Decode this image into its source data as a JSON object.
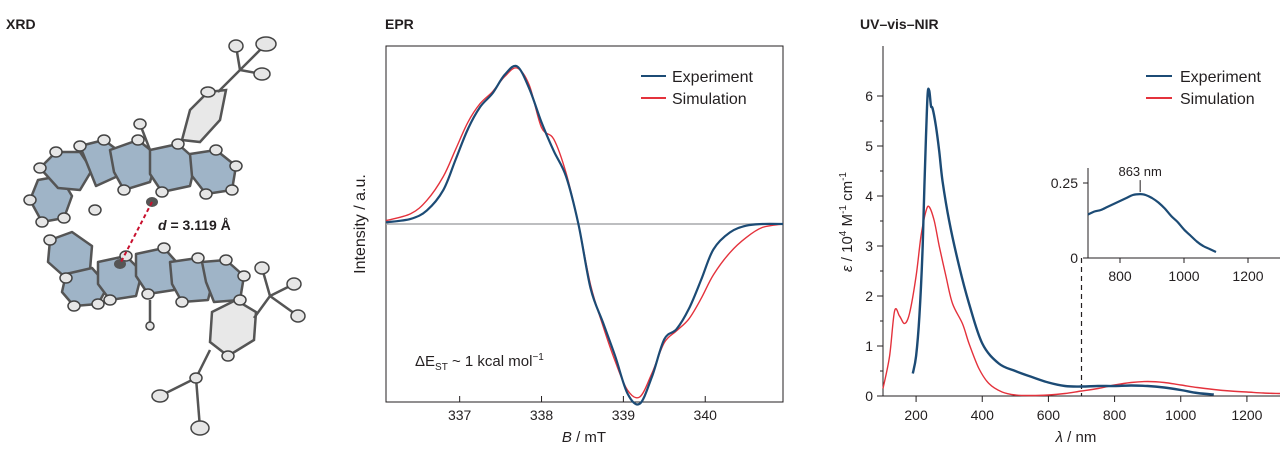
{
  "panels": {
    "xrd": {
      "title": "XRD",
      "distance_label": "d = 3.119 Å",
      "distance_var": "d",
      "distance_value": " = 3.119 Å"
    },
    "epr": {
      "title": "EPR"
    },
    "uv": {
      "title": "UV–vis–NIR"
    }
  },
  "colors": {
    "experiment": "#1c4b75",
    "simulation": "#e4323c",
    "axis": "#231f20",
    "baseline": "#a7a9ac",
    "ring_fill": "#9fb4c7",
    "distance": "#c8102e"
  },
  "chart_data": [
    {
      "id": "epr",
      "type": "line",
      "title": "EPR",
      "xlabel_var": "B",
      "xlabel_unit": " / mT",
      "ylabel": "Intensity / a.u.",
      "xlim": [
        336.1,
        340.95
      ],
      "ylim": [
        -1.05,
        1.05
      ],
      "xticks": [
        337,
        338,
        339,
        340
      ],
      "baseline": 0,
      "legend": {
        "position": "top-right",
        "entries": [
          "Experiment",
          "Simulation"
        ]
      },
      "annotation": {
        "prefix": "ΔE",
        "sub": "ST",
        "suffix": " ~ 1 kcal mol",
        "sup": "−1"
      },
      "series": [
        {
          "name": "Experiment",
          "color": "#1c4b75",
          "x": [
            336.1,
            336.4,
            336.6,
            336.8,
            336.95,
            337.1,
            337.25,
            337.4,
            337.55,
            337.7,
            337.85,
            338.0,
            338.15,
            338.3,
            338.45,
            338.6,
            338.75,
            338.9,
            339.05,
            339.2,
            339.35,
            339.5,
            339.65,
            339.8,
            339.95,
            340.1,
            340.3,
            340.5,
            340.7,
            340.95
          ],
          "y": [
            0.01,
            0.03,
            0.08,
            0.2,
            0.38,
            0.56,
            0.69,
            0.77,
            0.88,
            0.93,
            0.8,
            0.6,
            0.43,
            0.28,
            0.0,
            -0.38,
            -0.58,
            -0.78,
            -1.0,
            -1.06,
            -0.9,
            -0.68,
            -0.62,
            -0.5,
            -0.33,
            -0.15,
            -0.05,
            -0.01,
            0.0,
            0.0
          ]
        },
        {
          "name": "Simulation",
          "color": "#e4323c",
          "x": [
            336.1,
            336.4,
            336.6,
            336.8,
            336.95,
            337.1,
            337.25,
            337.4,
            337.55,
            337.7,
            337.85,
            338.0,
            338.15,
            338.3,
            338.45,
            338.6,
            338.75,
            338.9,
            339.05,
            339.2,
            339.35,
            339.5,
            339.65,
            339.8,
            339.95,
            340.1,
            340.3,
            340.5,
            340.7,
            340.95
          ],
          "y": [
            0.02,
            0.06,
            0.14,
            0.28,
            0.44,
            0.6,
            0.71,
            0.78,
            0.87,
            0.92,
            0.82,
            0.57,
            0.5,
            0.3,
            0.0,
            -0.36,
            -0.6,
            -0.81,
            -0.98,
            -1.02,
            -0.88,
            -0.7,
            -0.63,
            -0.56,
            -0.44,
            -0.3,
            -0.17,
            -0.08,
            -0.02,
            0.0
          ]
        }
      ]
    },
    {
      "id": "uv",
      "type": "line",
      "title": "UV–vis–NIR",
      "xlabel_var": "λ",
      "xlabel_unit": " / nm",
      "ylabel_var": "ε",
      "ylabel_unit": " / 10",
      "ylabel_sup1": "4",
      "ylabel_mid": " M",
      "ylabel_sup2": "-1",
      "ylabel_end": " cm",
      "ylabel_sup3": "-1",
      "xlim": [
        100,
        1300
      ],
      "ylim": [
        0,
        7
      ],
      "xticks": [
        200,
        400,
        600,
        800,
        1000,
        1200
      ],
      "yticks": [
        0,
        1,
        2,
        3,
        4,
        5,
        6
      ],
      "marker_line_x": 700,
      "legend": {
        "position": "top-right",
        "entries": [
          "Experiment",
          "Simulation"
        ]
      },
      "series": [
        {
          "name": "Experiment",
          "color": "#1c4b75",
          "x": [
            190,
            200,
            210,
            220,
            225,
            230,
            235,
            240,
            245,
            250,
            260,
            270,
            280,
            300,
            330,
            360,
            400,
            450,
            500,
            550,
            600,
            650,
            700,
            750,
            800,
            850,
            900,
            950,
            1000,
            1050,
            1100
          ],
          "y": [
            0.45,
            0.8,
            1.6,
            3.0,
            4.2,
            5.2,
            6.05,
            6.1,
            5.8,
            5.75,
            5.4,
            4.9,
            4.3,
            3.5,
            2.6,
            1.85,
            1.05,
            0.65,
            0.5,
            0.38,
            0.27,
            0.2,
            0.19,
            0.2,
            0.2,
            0.21,
            0.2,
            0.17,
            0.12,
            0.06,
            0.03
          ]
        },
        {
          "name": "Simulation",
          "color": "#e4323c",
          "x": [
            100,
            120,
            135,
            150,
            165,
            180,
            200,
            215,
            230,
            240,
            255,
            270,
            290,
            310,
            340,
            360,
            390,
            420,
            460,
            500,
            550,
            600,
            650,
            700,
            750,
            800,
            850,
            900,
            950,
            1000,
            1050,
            1100,
            1150,
            1200,
            1250,
            1300
          ],
          "y": [
            0.15,
            0.8,
            1.7,
            1.6,
            1.45,
            1.65,
            2.4,
            3.2,
            3.7,
            3.78,
            3.5,
            3.0,
            2.4,
            1.85,
            1.45,
            1.05,
            0.55,
            0.25,
            0.08,
            0.02,
            0.01,
            0.02,
            0.05,
            0.1,
            0.15,
            0.22,
            0.27,
            0.29,
            0.27,
            0.22,
            0.17,
            0.13,
            0.1,
            0.08,
            0.06,
            0.05
          ]
        }
      ]
    },
    {
      "id": "uv-inset",
      "type": "line",
      "annotation": "863 nm",
      "peak_x": 863,
      "xlim": [
        700,
        1300
      ],
      "ylim": [
        0,
        0.3
      ],
      "xticks": [
        800,
        1000,
        1200
      ],
      "yticks": [
        0,
        0.25
      ],
      "ytick_labels": [
        "0",
        "0.25"
      ],
      "series": [
        {
          "name": "Experiment",
          "color": "#1c4b75",
          "x": [
            700,
            720,
            740,
            760,
            780,
            800,
            820,
            840,
            863,
            880,
            900,
            920,
            940,
            960,
            980,
            1000,
            1020,
            1040,
            1060,
            1080,
            1100
          ],
          "y": [
            0.145,
            0.155,
            0.16,
            0.17,
            0.18,
            0.19,
            0.2,
            0.21,
            0.213,
            0.21,
            0.2,
            0.185,
            0.165,
            0.14,
            0.12,
            0.095,
            0.075,
            0.055,
            0.04,
            0.03,
            0.02
          ]
        }
      ]
    }
  ]
}
